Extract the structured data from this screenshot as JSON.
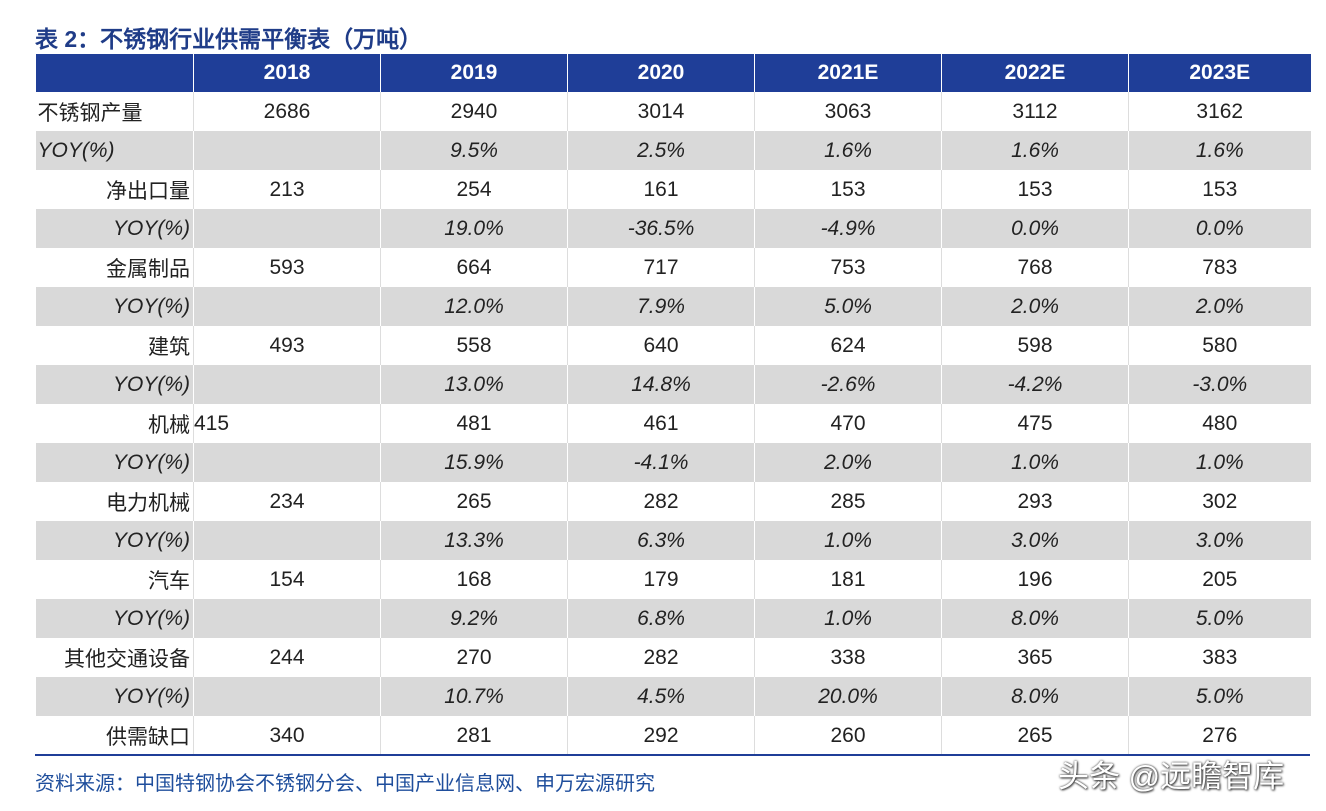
{
  "title": "表 2：不锈钢行业供需平衡表（万吨）",
  "table": {
    "header": [
      "2018",
      "2019",
      "2020",
      "2021E",
      "2022E",
      "2023E"
    ],
    "rows": [
      {
        "label": "不锈钢产量",
        "values": [
          "2686",
          "2940",
          "3014",
          "3063",
          "3112",
          "3162"
        ]
      },
      {
        "label": "YOY(%)",
        "values": [
          "9.5%",
          "2.5%",
          "1.6%",
          "1.6%",
          "1.6%"
        ]
      },
      {
        "label": "净出口量",
        "values": [
          "213",
          "254",
          "161",
          "153",
          "153",
          "153"
        ]
      },
      {
        "label": "YOY(%)",
        "values": [
          "19.0%",
          "-36.5%",
          "-4.9%",
          "0.0%",
          "0.0%"
        ]
      },
      {
        "label": "金属制品",
        "values": [
          "593",
          "664",
          "717",
          "753",
          "768",
          "783"
        ]
      },
      {
        "label": "YOY(%)",
        "values": [
          "12.0%",
          "7.9%",
          "5.0%",
          "2.0%",
          "2.0%"
        ]
      },
      {
        "label": "建筑",
        "values": [
          "493",
          "558",
          "640",
          "624",
          "598",
          "580"
        ]
      },
      {
        "label": "YOY(%)",
        "values": [
          "13.0%",
          "14.8%",
          "-2.6%",
          "-4.2%",
          "-3.0%"
        ]
      },
      {
        "label": "机械",
        "values": [
          "415",
          "481",
          "461",
          "470",
          "475",
          "480"
        ]
      },
      {
        "label": "YOY(%)",
        "values": [
          "15.9%",
          "-4.1%",
          "2.0%",
          "1.0%",
          "1.0%"
        ]
      },
      {
        "label": "电力机械",
        "values": [
          "234",
          "265",
          "282",
          "285",
          "293",
          "302"
        ]
      },
      {
        "label": "YOY(%)",
        "values": [
          "13.3%",
          "6.3%",
          "1.0%",
          "3.0%",
          "3.0%"
        ]
      },
      {
        "label": "汽车",
        "values": [
          "154",
          "168",
          "179",
          "181",
          "196",
          "205"
        ]
      },
      {
        "label": "YOY(%)",
        "values": [
          "9.2%",
          "6.8%",
          "1.0%",
          "8.0%",
          "5.0%"
        ]
      },
      {
        "label": "其他交通设备",
        "values": [
          "244",
          "270",
          "282",
          "338",
          "365",
          "383"
        ]
      },
      {
        "label": "YOY(%)",
        "values": [
          "10.7%",
          "4.5%",
          "20.0%",
          "8.0%",
          "5.0%"
        ]
      },
      {
        "label": "供需缺口",
        "values": [
          "340",
          "281",
          "292",
          "260",
          "265",
          "276"
        ]
      }
    ]
  },
  "source": "资料来源：中国特钢协会不锈钢分会、中国产业信息网、申万宏源研究",
  "watermark": "头条 @远瞻智库"
}
